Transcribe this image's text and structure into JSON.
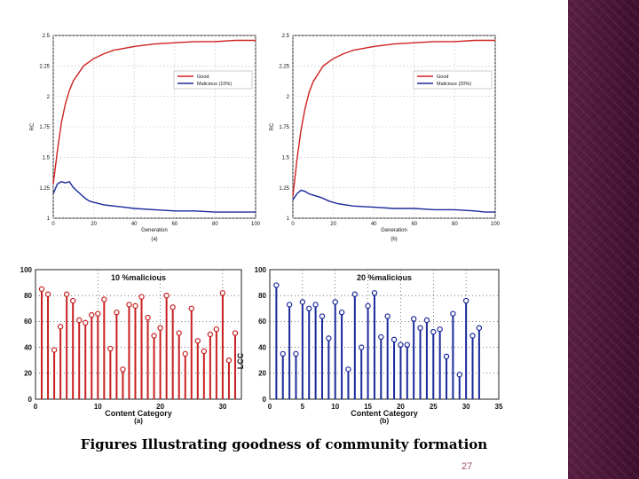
{
  "slide": {
    "caption": "Figures Illustrating goodness of community formation",
    "page_number": "27",
    "accent_color": "#4a1538"
  },
  "chart_data": [
    {
      "type": "line",
      "panel_label": "(a)",
      "xlabel": "Generation",
      "ylabel": "RC",
      "xlim": [
        0,
        100
      ],
      "ylim": [
        1,
        2.5
      ],
      "xticks": [
        0,
        20,
        40,
        60,
        80,
        100
      ],
      "yticks": [
        1,
        1.25,
        1.5,
        1.75,
        2,
        2.25,
        2.5
      ],
      "xtick_labels": [
        "0",
        "20",
        "40",
        "60",
        "80",
        "100"
      ],
      "ytick_labels": [
        "1",
        "1.25",
        "1.5",
        "1.75",
        "2",
        "2.25",
        "2.5"
      ],
      "legend_position": "top-right",
      "series": [
        {
          "name": "Good",
          "color": "#d02020",
          "x": [
            0,
            2,
            4,
            6,
            8,
            10,
            15,
            20,
            25,
            30,
            40,
            50,
            60,
            70,
            80,
            90,
            100
          ],
          "values": [
            1.28,
            1.55,
            1.78,
            1.94,
            2.05,
            2.13,
            2.25,
            2.31,
            2.35,
            2.38,
            2.41,
            2.43,
            2.44,
            2.45,
            2.45,
            2.46,
            2.46
          ]
        },
        {
          "name": "Malicious (10%)",
          "color": "#1a2a9a",
          "x": [
            0,
            2,
            4,
            6,
            8,
            10,
            12,
            14,
            16,
            18,
            20,
            25,
            30,
            35,
            40,
            50,
            60,
            70,
            80,
            90,
            100
          ],
          "values": [
            1.2,
            1.28,
            1.3,
            1.29,
            1.3,
            1.25,
            1.22,
            1.19,
            1.16,
            1.14,
            1.13,
            1.11,
            1.1,
            1.09,
            1.08,
            1.07,
            1.06,
            1.06,
            1.05,
            1.05,
            1.05
          ]
        }
      ]
    },
    {
      "type": "line",
      "panel_label": "(b)",
      "xlabel": "Generation",
      "ylabel": "RC",
      "xlim": [
        0,
        100
      ],
      "ylim": [
        1,
        2.5
      ],
      "xticks": [
        0,
        20,
        40,
        60,
        80,
        100
      ],
      "yticks": [
        1,
        1.25,
        1.5,
        1.75,
        2,
        2.25,
        2.5
      ],
      "xtick_labels": [
        "0",
        "20",
        "40",
        "60",
        "80",
        "100"
      ],
      "ytick_labels": [
        "1",
        "1.25",
        "1.5",
        "1.75",
        "2",
        "2.25",
        "2.5"
      ],
      "legend_position": "top-right",
      "series": [
        {
          "name": "Good",
          "color": "#d02020",
          "x": [
            0,
            2,
            4,
            6,
            8,
            10,
            15,
            20,
            25,
            30,
            40,
            50,
            60,
            70,
            80,
            90,
            100
          ],
          "values": [
            1.18,
            1.48,
            1.72,
            1.9,
            2.03,
            2.12,
            2.25,
            2.31,
            2.35,
            2.38,
            2.41,
            2.43,
            2.44,
            2.45,
            2.45,
            2.46,
            2.46
          ]
        },
        {
          "name": "Malicious (20%)",
          "color": "#1a2a9a",
          "x": [
            0,
            2,
            4,
            6,
            8,
            10,
            14,
            18,
            22,
            26,
            30,
            40,
            50,
            60,
            70,
            80,
            90,
            95,
            100
          ],
          "values": [
            1.15,
            1.2,
            1.23,
            1.22,
            1.2,
            1.19,
            1.17,
            1.14,
            1.12,
            1.11,
            1.1,
            1.09,
            1.08,
            1.08,
            1.07,
            1.07,
            1.06,
            1.05,
            1.05
          ]
        }
      ]
    },
    {
      "type": "stem",
      "panel_label": "(a)",
      "title": "10 %malicious",
      "xlabel": "Content Category",
      "ylabel": "",
      "xlim": [
        0,
        33
      ],
      "ylim": [
        0,
        100
      ],
      "xticks": [
        0,
        10,
        20,
        30
      ],
      "yticks": [
        0,
        20,
        40,
        60,
        80,
        100
      ],
      "xtick_labels": [
        "0",
        "10",
        "20",
        "30"
      ],
      "ytick_labels": [
        "0",
        "20",
        "40",
        "60",
        "80",
        "100"
      ],
      "color": "#c82020",
      "x": [
        1,
        2,
        3,
        4,
        5,
        6,
        7,
        8,
        9,
        10,
        11,
        12,
        13,
        14,
        15,
        16,
        17,
        18,
        19,
        20,
        21,
        22,
        23,
        24,
        25,
        26,
        27,
        28,
        29,
        30,
        31,
        32
      ],
      "values": [
        85,
        81,
        38,
        56,
        81,
        76,
        61,
        59,
        65,
        66,
        77,
        39,
        67,
        23,
        73,
        72,
        79,
        63,
        49,
        55,
        80,
        71,
        51,
        35,
        70,
        45,
        37,
        50,
        54,
        82,
        30,
        51
      ]
    },
    {
      "type": "stem",
      "panel_label": "(b)",
      "title": "20 %malicious",
      "xlabel": "Content Category",
      "ylabel": "LCC",
      "xlim": [
        0,
        35
      ],
      "ylim": [
        0,
        100
      ],
      "xticks": [
        0,
        5,
        10,
        15,
        20,
        25,
        30,
        35
      ],
      "yticks": [
        0,
        20,
        40,
        60,
        80,
        100
      ],
      "xtick_labels": [
        "0",
        "5",
        "10",
        "15",
        "20",
        "25",
        "30",
        "35"
      ],
      "ytick_labels": [
        "0",
        "20",
        "40",
        "60",
        "80",
        "100"
      ],
      "color": "#1a2a9a",
      "x": [
        1,
        2,
        3,
        4,
        5,
        6,
        7,
        8,
        9,
        10,
        11,
        12,
        13,
        14,
        15,
        16,
        17,
        18,
        19,
        20,
        21,
        22,
        23,
        24,
        25,
        26,
        27,
        28,
        29,
        30,
        31,
        32
      ],
      "values": [
        88,
        35,
        73,
        35,
        75,
        70,
        73,
        64,
        47,
        75,
        67,
        23,
        81,
        40,
        72,
        82,
        48,
        64,
        46,
        42,
        42,
        62,
        55,
        61,
        52,
        54,
        33,
        66,
        19,
        76,
        49,
        55
      ]
    }
  ]
}
